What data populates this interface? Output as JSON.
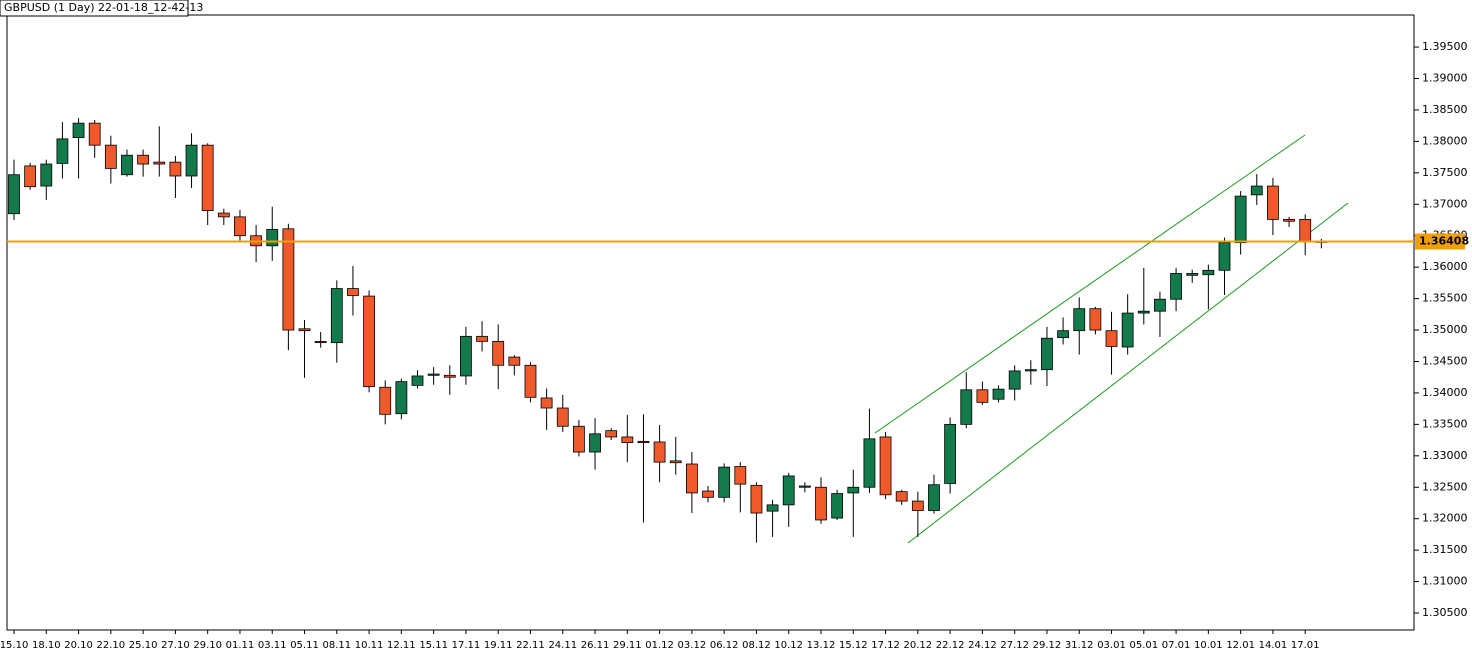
{
  "chart_data": {
    "type": "candlestick",
    "title": "GBPUSD (1 Day) 22-01-18_12-42-13",
    "categories": [
      "15.10",
      null,
      "18.10",
      null,
      "20.10",
      null,
      "22.10",
      null,
      "25.10",
      null,
      "27.10",
      null,
      "29.10",
      null,
      "01.11",
      null,
      "03.11",
      null,
      "05.11",
      null,
      "08.11",
      null,
      "10.11",
      null,
      "12.11",
      null,
      "15.11",
      null,
      "17.11",
      null,
      "19.11",
      null,
      "22.11",
      null,
      "24.11",
      null,
      "26.11",
      null,
      "29.11",
      null,
      "01.12",
      null,
      "03.12",
      null,
      "06.12",
      null,
      "08.12",
      null,
      "10.12",
      null,
      "13.12",
      null,
      "15.12",
      null,
      "17.12",
      null,
      "20.12",
      null,
      "22.12",
      null,
      "24.12",
      null,
      "27.12",
      null,
      "29.12",
      null,
      "31.12",
      null,
      "03.01",
      null,
      "05.01",
      null,
      "07.01",
      null,
      "10.01",
      null,
      "12.01",
      null,
      "14.01",
      null,
      "17.01",
      null
    ],
    "open": [
      1.3685,
      1.3761,
      1.3729,
      1.3765,
      1.3806,
      1.3829,
      1.3794,
      1.3747,
      1.3778,
      1.3767,
      1.3767,
      1.3745,
      1.3794,
      1.3686,
      1.368,
      1.365,
      1.3634,
      1.3661,
      1.3502,
      1.3482,
      1.348,
      1.3566,
      1.3554,
      1.3409,
      1.3367,
      1.3412,
      1.3428,
      1.3428,
      1.3427,
      1.349,
      1.3482,
      1.3457,
      1.3444,
      1.3392,
      1.3376,
      1.3347,
      1.3306,
      1.334,
      1.333,
      1.3323,
      1.3322,
      1.3292,
      1.3287,
      1.3244,
      1.3234,
      1.3283,
      1.3253,
      1.3212,
      1.3222,
      1.325,
      1.325,
      1.3201,
      1.3241,
      1.325,
      1.333,
      1.3243,
      1.3228,
      1.3213,
      1.3256,
      1.335,
      1.3405,
      1.339,
      1.3406,
      1.3435,
      1.3437,
      1.3488,
      1.3499,
      1.3534,
      1.3499,
      1.3473,
      1.3527,
      1.353,
      1.3549,
      1.3587,
      1.3588,
      1.3595,
      1.3639,
      1.3715,
      1.3729,
      1.3676,
      1.3676,
      1.3641
    ],
    "high": [
      1.3771,
      1.3766,
      1.3771,
      1.3831,
      1.3837,
      1.3834,
      1.3809,
      1.3787,
      1.3787,
      1.3824,
      1.3777,
      1.3813,
      1.3797,
      1.3693,
      1.3691,
      1.3667,
      1.3696,
      1.3669,
      1.3516,
      1.3497,
      1.3579,
      1.3602,
      1.3563,
      1.342,
      1.3423,
      1.3436,
      1.3441,
      1.3444,
      1.3505,
      1.3514,
      1.3509,
      1.346,
      1.3449,
      1.3407,
      1.3397,
      1.3357,
      1.336,
      1.3344,
      1.3365,
      1.3366,
      1.3349,
      1.333,
      1.3306,
      1.3252,
      1.3288,
      1.329,
      1.3258,
      1.323,
      1.3273,
      1.3258,
      1.3266,
      1.3246,
      1.3278,
      1.3375,
      1.3338,
      1.3246,
      1.3243,
      1.327,
      1.3361,
      1.3433,
      1.3418,
      1.3412,
      1.3444,
      1.3452,
      1.3505,
      1.352,
      1.3552,
      1.3537,
      1.3529,
      1.3557,
      1.3599,
      1.3561,
      1.3599,
      1.3596,
      1.3604,
      1.3647,
      1.3721,
      1.3748,
      1.3742,
      1.368,
      1.3684,
      1.3645
    ],
    "low": [
      1.3675,
      1.3723,
      1.3707,
      1.3741,
      1.3741,
      1.3774,
      1.3733,
      1.3744,
      1.3744,
      1.3744,
      1.371,
      1.3726,
      1.3667,
      1.3667,
      1.364,
      1.3608,
      1.361,
      1.3468,
      1.3424,
      1.3472,
      1.3448,
      1.3523,
      1.3401,
      1.335,
      1.3358,
      1.3407,
      1.3413,
      1.3397,
      1.3413,
      1.3466,
      1.3406,
      1.3428,
      1.3385,
      1.3341,
      1.3338,
      1.3299,
      1.3278,
      1.3325,
      1.329,
      1.3194,
      1.3258,
      1.327,
      1.3209,
      1.3226,
      1.3226,
      1.321,
      1.3162,
      1.3171,
      1.3187,
      1.3242,
      1.3192,
      1.3198,
      1.3171,
      1.3241,
      1.3231,
      1.3222,
      1.3171,
      1.3208,
      1.324,
      1.3344,
      1.3381,
      1.3385,
      1.3388,
      1.3413,
      1.3411,
      1.3477,
      1.3461,
      1.3493,
      1.3429,
      1.3461,
      1.3509,
      1.3489,
      1.353,
      1.3575,
      1.3533,
      1.3556,
      1.362,
      1.3699,
      1.3651,
      1.3664,
      1.3619,
      1.363
    ],
    "close": [
      1.3747,
      1.3728,
      1.3764,
      1.3804,
      1.3829,
      1.3794,
      1.3757,
      1.3778,
      1.3764,
      1.3764,
      1.3745,
      1.3794,
      1.369,
      1.368,
      1.365,
      1.3634,
      1.366,
      1.35,
      1.3499,
      1.348,
      1.3566,
      1.3555,
      1.341,
      1.3366,
      1.3418,
      1.3427,
      1.343,
      1.3425,
      1.349,
      1.3482,
      1.3444,
      1.3444,
      1.3393,
      1.3376,
      1.3347,
      1.3306,
      1.3335,
      1.333,
      1.3321,
      1.3321,
      1.329,
      1.3289,
      1.3241,
      1.3234,
      1.3282,
      1.3255,
      1.3209,
      1.3222,
      1.3268,
      1.3252,
      1.3198,
      1.324,
      1.325,
      1.3327,
      1.3238,
      1.3228,
      1.3213,
      1.3254,
      1.335,
      1.3405,
      1.3385,
      1.3406,
      1.3435,
      1.3437,
      1.3487,
      1.3499,
      1.3534,
      1.35,
      1.3474,
      1.3527,
      1.353,
      1.3549,
      1.359,
      1.359,
      1.3595,
      1.3639,
      1.3713,
      1.3729,
      1.3676,
      1.3673,
      1.364,
      1.364
    ],
    "up_color": "#137b4b",
    "down_color": "#f05a2a",
    "ylim": [
      1.3023,
      1.4001
    ],
    "yticks": [
      {
        "value": 1.305,
        "label": "1.30500"
      },
      {
        "value": 1.31,
        "label": "1.31000"
      },
      {
        "value": 1.315,
        "label": "1.31500"
      },
      {
        "value": 1.32,
        "label": "1.32000"
      },
      {
        "value": 1.325,
        "label": "1.32500"
      },
      {
        "value": 1.33,
        "label": "1.33000"
      },
      {
        "value": 1.335,
        "label": "1.33500"
      },
      {
        "value": 1.34,
        "label": "1.34000"
      },
      {
        "value": 1.345,
        "label": "1.34500"
      },
      {
        "value": 1.35,
        "label": "1.35000"
      },
      {
        "value": 1.355,
        "label": "1.35500"
      },
      {
        "value": 1.36,
        "label": "1.36000"
      },
      {
        "value": 1.365,
        "label": "1.36500"
      },
      {
        "value": 1.37,
        "label": "1.37000"
      },
      {
        "value": 1.375,
        "label": "1.37500"
      },
      {
        "value": 1.38,
        "label": "1.38000"
      },
      {
        "value": 1.385,
        "label": "1.38500"
      },
      {
        "value": 1.39,
        "label": "1.39000"
      },
      {
        "value": 1.395,
        "label": "1.39500"
      }
    ],
    "price_line": 1.36408,
    "price_line_color": "#f0a000"
  }
}
